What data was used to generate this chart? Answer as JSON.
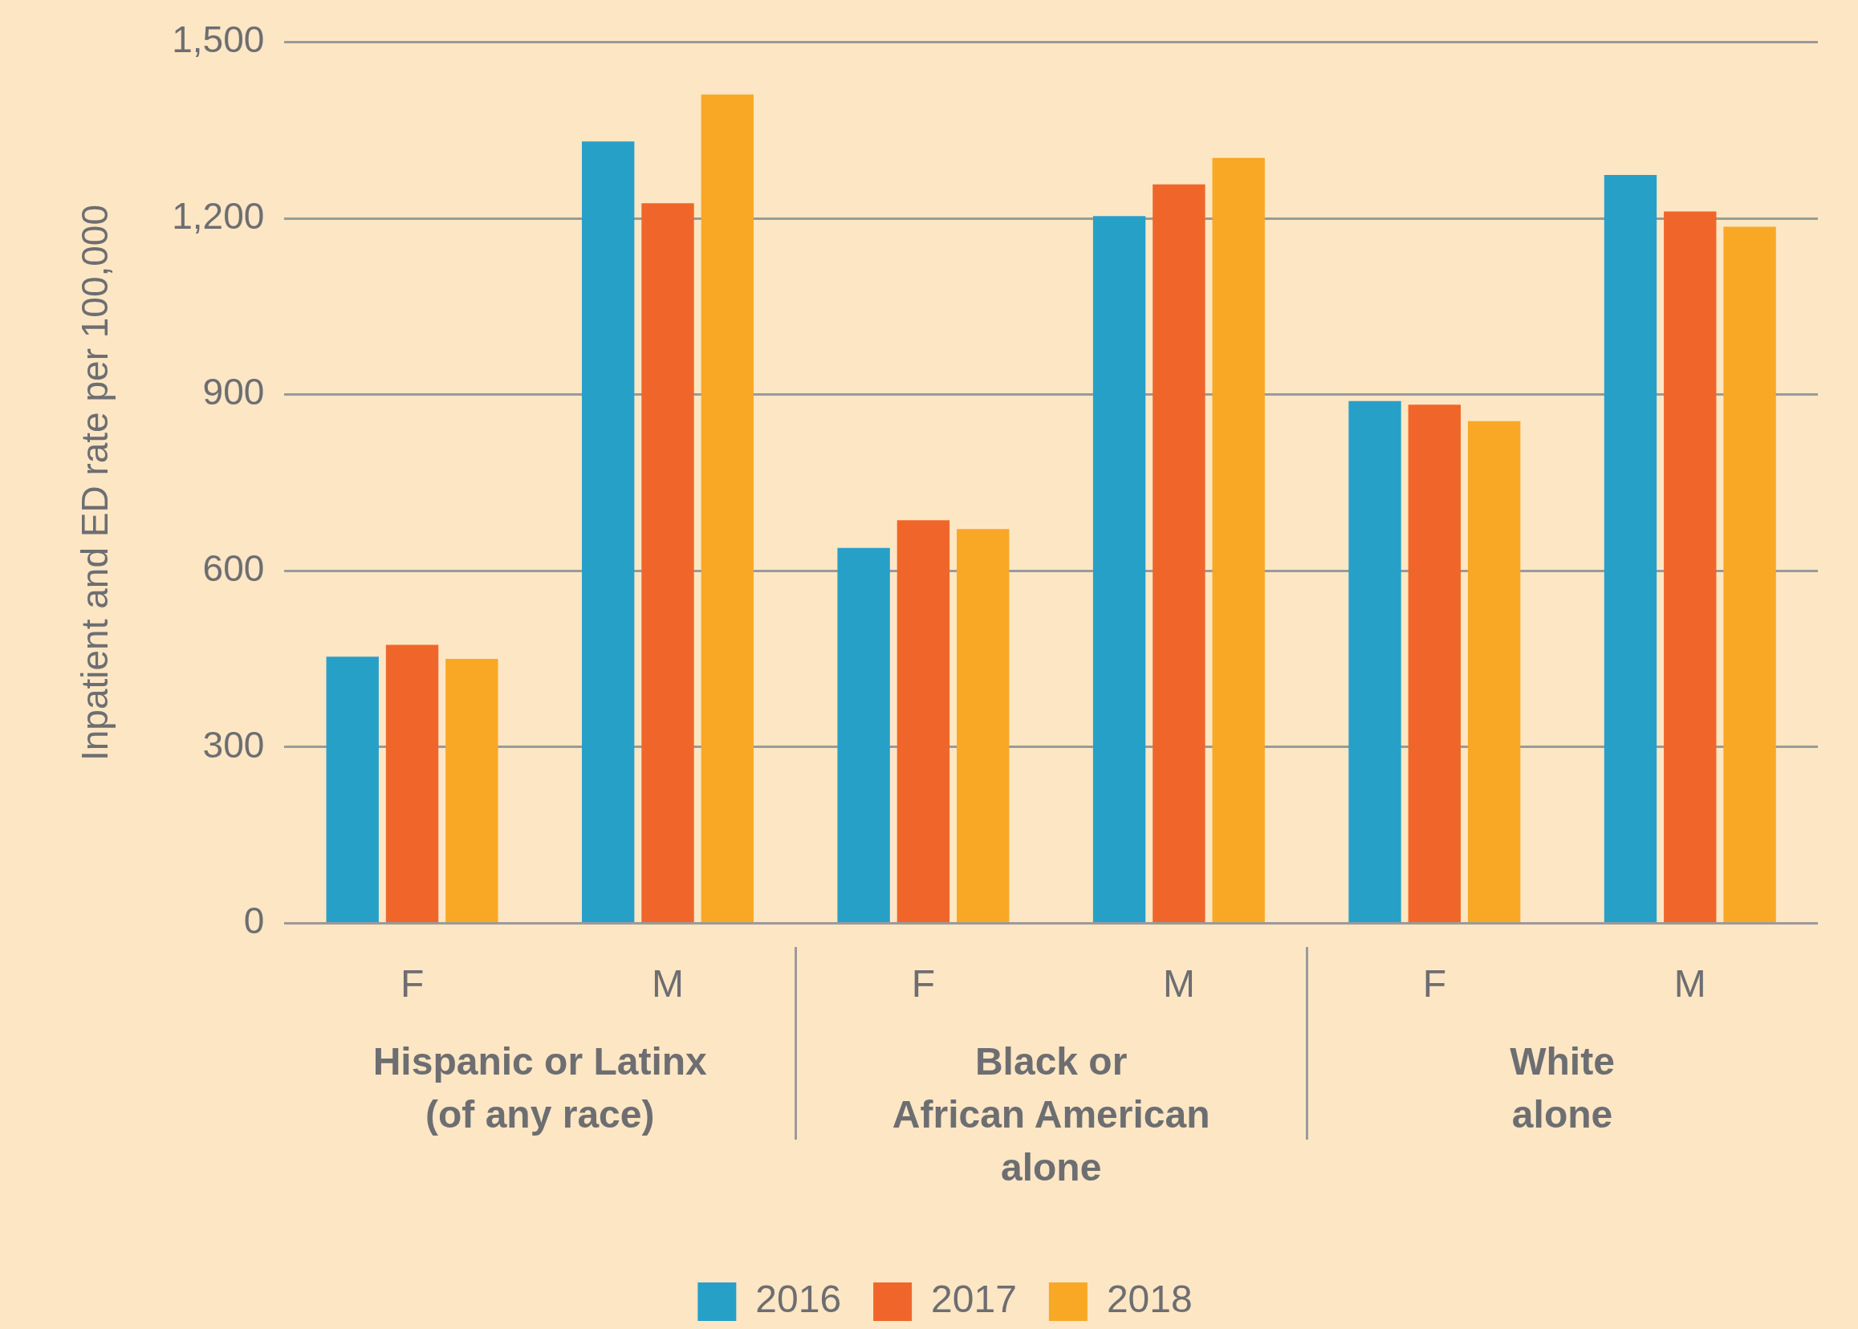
{
  "chart_data": {
    "type": "bar",
    "ylabel": "Inpatient and ED rate per 100,000",
    "categories": [
      "F",
      "M",
      "F",
      "M",
      "F",
      "M"
    ],
    "series": [
      {
        "name": "2016",
        "color": "#27a0c8",
        "values": [
          454,
          1331,
          639,
          1204,
          889,
          1274
        ]
      },
      {
        "name": "2017",
        "color": "#f0662a",
        "values": [
          474,
          1226,
          686,
          1258,
          883,
          1212
        ]
      },
      {
        "name": "2018",
        "color": "#f9a825",
        "values": [
          450,
          1411,
          671,
          1303,
          855,
          1186
        ]
      }
    ],
    "ylim": [
      0,
      1500
    ],
    "yticks": [
      0,
      300,
      600,
      900,
      {
        "value": 1200,
        "label": "1,200"
      },
      {
        "value": 1500,
        "label": "1,500"
      }
    ],
    "grid": "y",
    "legend": "bottom",
    "annotations": [
      "Hispanic or Latinx\n(of any race)",
      "Black or\nAfrican American\nalone",
      "White\nalone"
    ]
  }
}
